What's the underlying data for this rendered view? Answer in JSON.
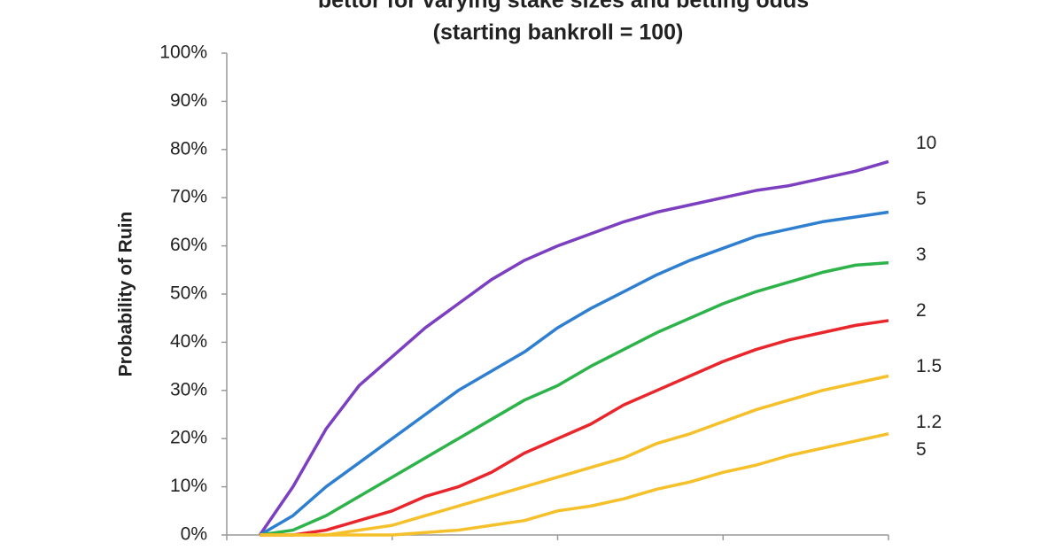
{
  "chart_data": {
    "type": "line",
    "title": "bettor for varying stake sizes and betting odds",
    "subtitle": "(starting bankroll = 100)",
    "y_label": "Probability of Ruin",
    "x": [
      1,
      2,
      3,
      4,
      5,
      6,
      7,
      8,
      9,
      10,
      11,
      12,
      13,
      14,
      15,
      16,
      17,
      18,
      19,
      20
    ],
    "xlim": [
      0,
      20
    ],
    "xticks": [
      0,
      5,
      10,
      15,
      20
    ],
    "ylim": [
      0,
      100
    ],
    "yticks": [
      {
        "value": 0,
        "label": "0%"
      },
      {
        "value": 10,
        "label": "10%"
      },
      {
        "value": 20,
        "label": "20%"
      },
      {
        "value": 30,
        "label": "30%"
      },
      {
        "value": 40,
        "label": "40%"
      },
      {
        "value": 50,
        "label": "50%"
      },
      {
        "value": 60,
        "label": "60%"
      },
      {
        "value": 70,
        "label": "70%"
      },
      {
        "value": 80,
        "label": "80%"
      },
      {
        "value": 90,
        "label": "90%"
      },
      {
        "value": 100,
        "label": "100%"
      }
    ],
    "grid": false,
    "series": [
      {
        "name": "10",
        "color": "#7b3fc0",
        "values": [
          0,
          10,
          22,
          31,
          37,
          43,
          48,
          53,
          57,
          60,
          62.5,
          65,
          67,
          68.5,
          70,
          71.5,
          72.5,
          74,
          75.5,
          77.5
        ]
      },
      {
        "name": "5",
        "color": "#2f7fd0",
        "values": [
          0,
          4,
          10,
          15,
          20,
          25,
          30,
          34,
          38,
          43,
          47,
          50.5,
          54,
          57,
          59.5,
          62,
          63.5,
          65,
          66,
          67
        ]
      },
      {
        "name": "3",
        "color": "#2db34a",
        "values": [
          0,
          1,
          4,
          8,
          12,
          16,
          20,
          24,
          28,
          31,
          35,
          38.5,
          42,
          45,
          48,
          50.5,
          52.5,
          54.5,
          56,
          56.5
        ]
      },
      {
        "name": "2",
        "color": "#e8262b",
        "values": [
          0,
          0,
          1,
          3,
          5,
          8,
          10,
          13,
          17,
          20,
          23,
          27,
          30,
          33,
          36,
          38.5,
          40.5,
          42,
          43.5,
          44.5
        ]
      },
      {
        "name": "1.5",
        "color": "#f5c02a",
        "values": [
          0,
          0,
          0,
          1,
          2,
          4,
          6,
          8,
          10,
          12,
          14,
          16,
          19,
          21,
          23.5,
          26,
          28,
          30,
          31.5,
          33
        ]
      },
      {
        "name": "1.25",
        "color": "#f5c02a",
        "values": [
          0,
          0,
          0,
          0,
          0,
          0.5,
          1,
          2,
          3,
          5,
          6,
          7.5,
          9.5,
          11,
          13,
          14.5,
          16.5,
          18,
          19.5,
          21
        ]
      }
    ]
  }
}
